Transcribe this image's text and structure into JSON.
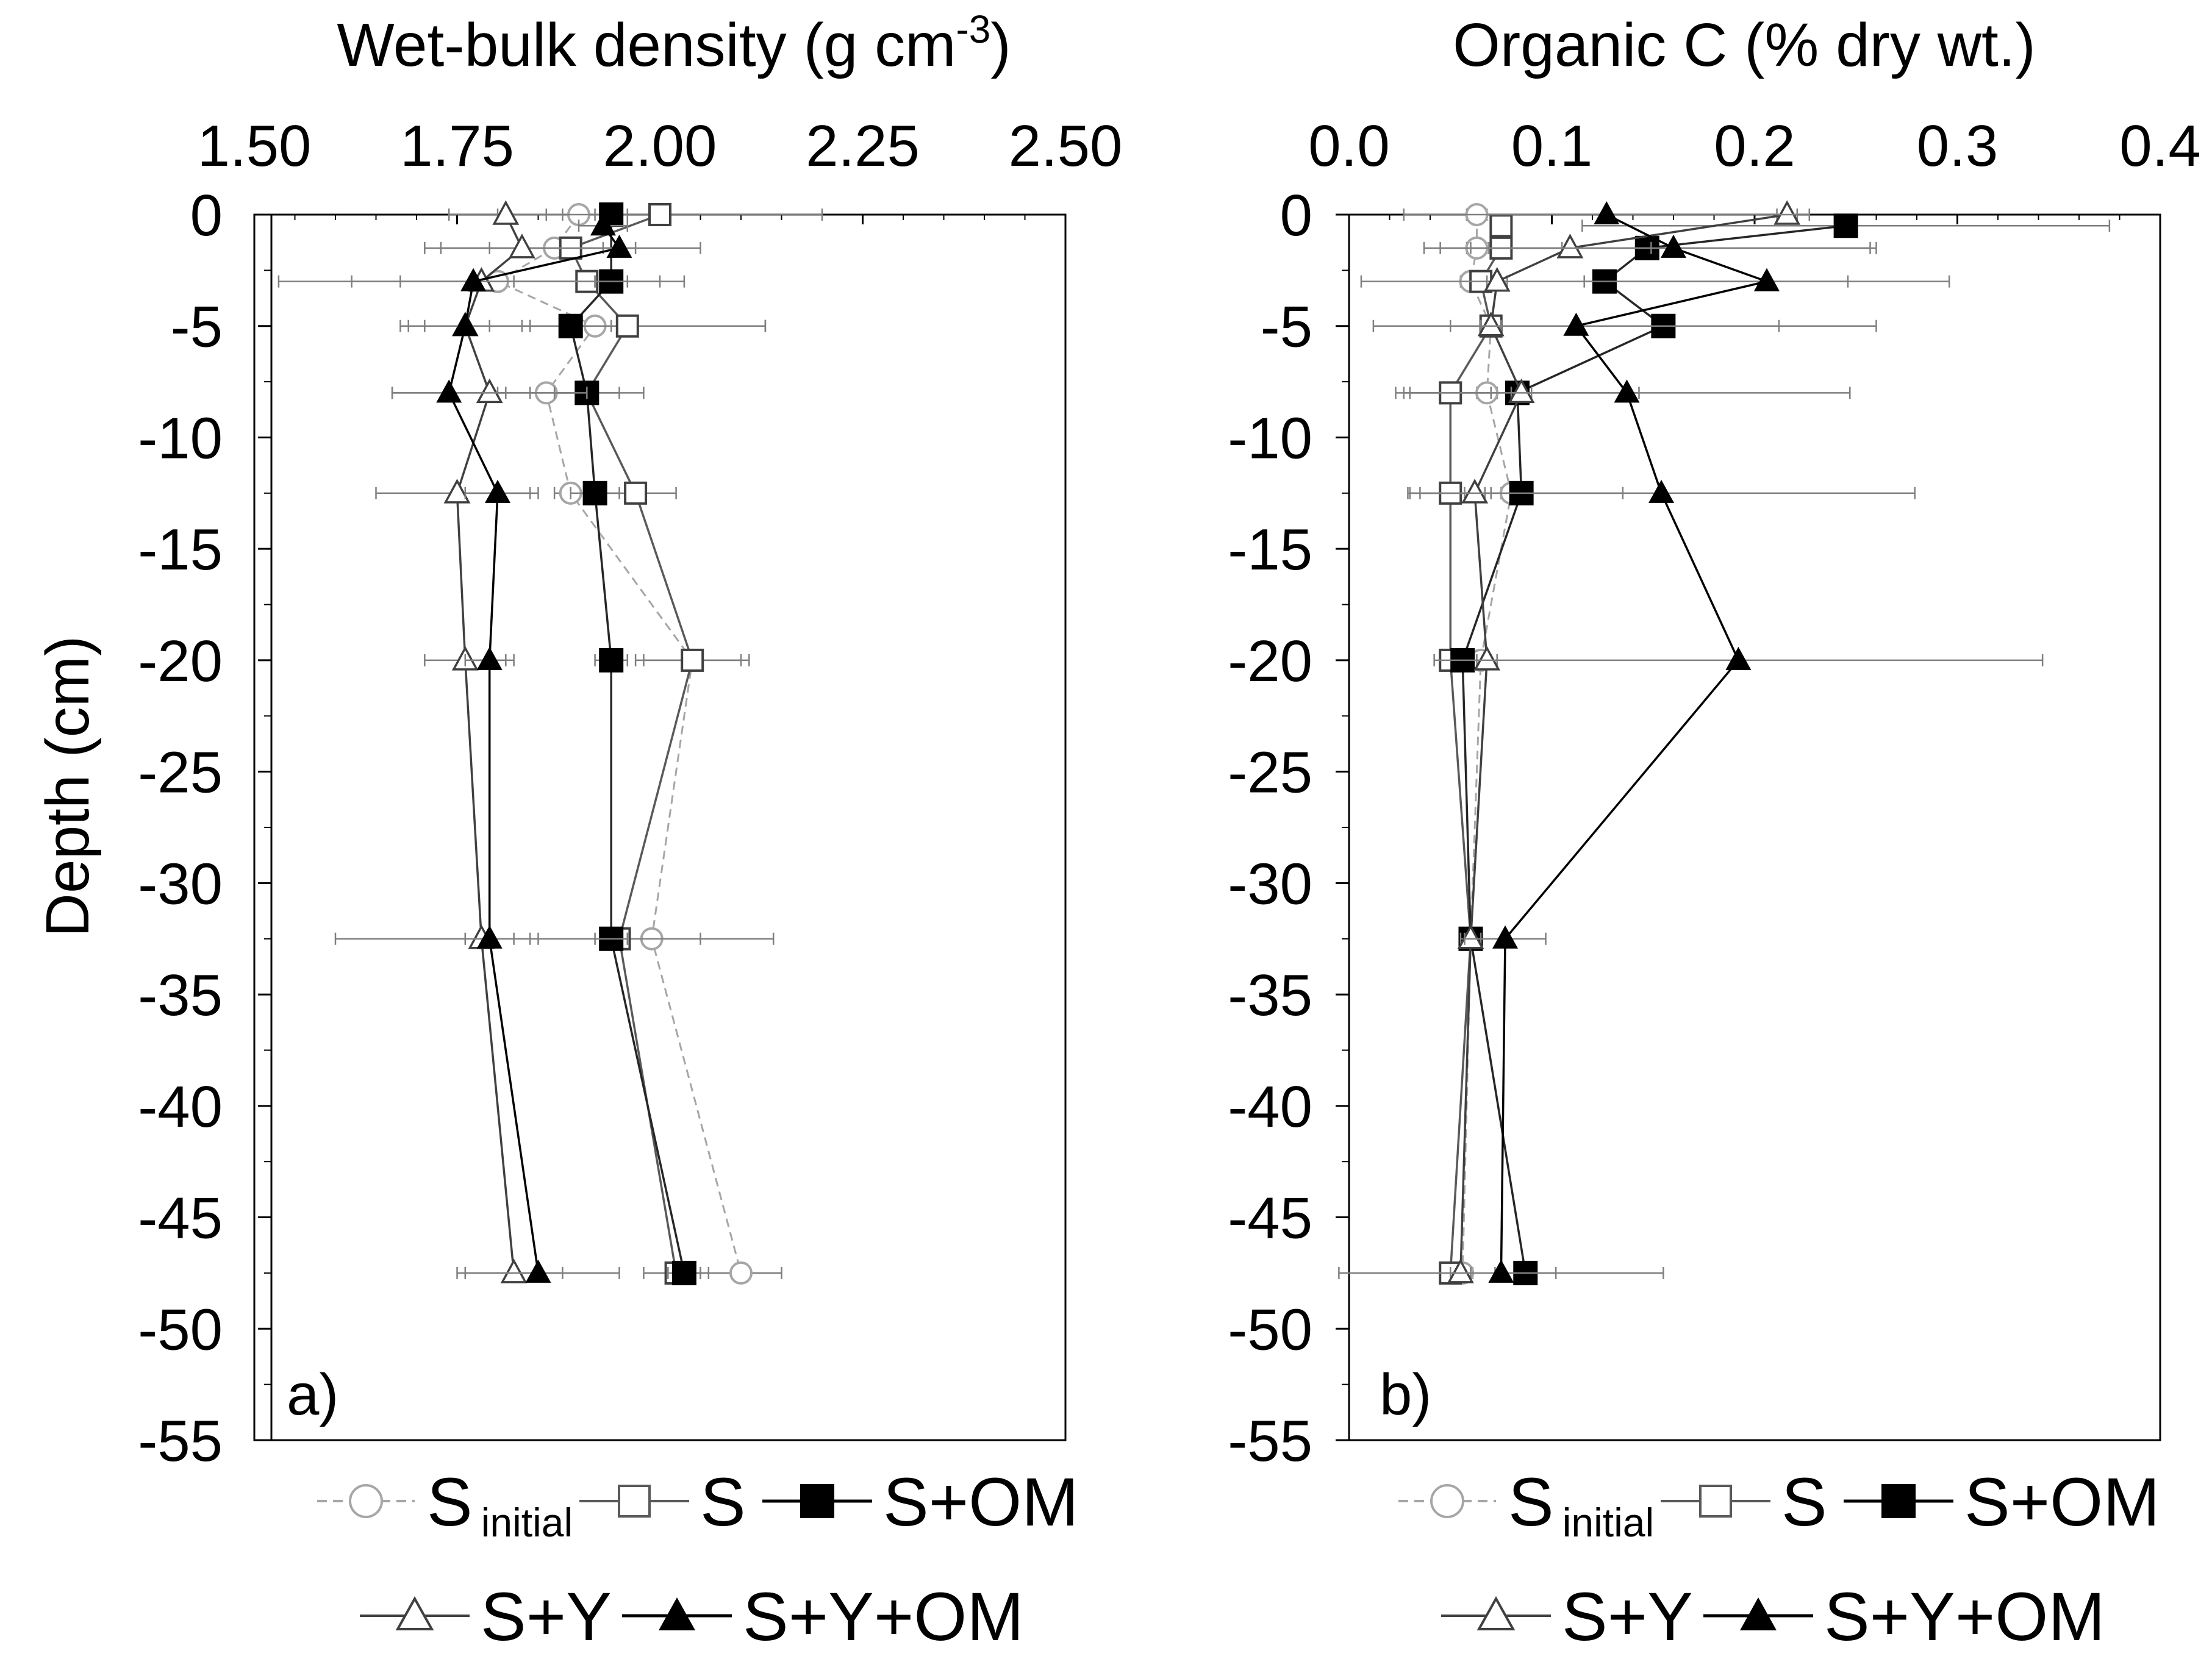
{
  "figure": {
    "y_axis_title": "Depth (cm)",
    "y_tick_labels": [
      "0",
      "-5",
      "-10",
      "-15",
      "-20",
      "-25",
      "-30",
      "-35",
      "-40",
      "-45",
      "-50",
      "-55"
    ]
  },
  "legend_labels": {
    "s_initial_main": "S",
    "s_initial_sub": "initial",
    "s": "S",
    "s_om": "S+OM",
    "s_y": "S+Y",
    "s_y_om": "S+Y+OM"
  },
  "chart_data": [
    {
      "type": "line",
      "panel_label": "a)",
      "title_main": "Wet-bulk density (g cm",
      "title_sup": "-3",
      "title_end": ")",
      "xlabel": "Wet-bulk density (g cm-3)",
      "ylabel": "Depth (cm)",
      "xlim": [
        1.5,
        2.5
      ],
      "ylim": [
        -55,
        0
      ],
      "x_ticks": [
        1.5,
        1.75,
        2.0,
        2.25,
        2.5
      ],
      "x_tick_labels": [
        "1.50",
        "1.75",
        "2.00",
        "2.25",
        "2.50"
      ],
      "y_ticks": [
        0,
        -5,
        -10,
        -15,
        -20,
        -25,
        -30,
        -35,
        -40,
        -45,
        -50,
        -55
      ],
      "series": [
        {
          "name": "S initial",
          "marker": "open-circle",
          "line": "dashed",
          "color": "#a6a6a6",
          "depth": [
            0,
            -1.5,
            -3,
            -5,
            -8,
            -12.5,
            -20,
            -32.5,
            -47.5
          ],
          "values": [
            1.9,
            1.87,
            1.8,
            1.92,
            1.86,
            1.89,
            2.04,
            1.99,
            2.1
          ],
          "error": [
            0.04,
            0.08,
            0.12,
            0.21,
            0.06,
            0.02,
            0.07,
            0.15,
            0.05
          ]
        },
        {
          "name": "S",
          "marker": "open-square",
          "line": "solid",
          "color": "#595959",
          "depth": [
            0,
            -1.5,
            -3,
            -5,
            -8,
            -12.5,
            -20,
            -32.5,
            -47.5
          ],
          "values": [
            2.0,
            1.89,
            1.91,
            1.96,
            1.91,
            1.97,
            2.04,
            1.95,
            2.02
          ],
          "error": [
            0.2,
            0.16,
            0.09,
            0.17,
            0.07,
            0.05,
            0.06,
            0.1,
            0.04
          ]
        },
        {
          "name": "S+OM",
          "marker": "filled-square",
          "line": "solid",
          "color": "#262626",
          "depth": [
            0,
            -3,
            -5,
            -8,
            -12.5,
            -20,
            -32.5,
            -47.5
          ],
          "values": [
            1.94,
            1.94,
            1.89,
            1.91,
            1.92,
            1.94,
            1.94,
            2.03
          ],
          "error": [
            0.02,
            0.02,
            0.05,
            0.04,
            0.03,
            0.02,
            0.02,
            0.02
          ]
        },
        {
          "name": "S+Y",
          "marker": "open-triangle",
          "line": "solid",
          "color": "#404040",
          "depth": [
            0,
            -1.5,
            -3,
            -5,
            -8,
            -12.5,
            -20,
            -32.5,
            -47.5
          ],
          "values": [
            1.81,
            1.83,
            1.78,
            1.76,
            1.79,
            1.75,
            1.76,
            1.78,
            1.82
          ],
          "error": [
            0.07,
            0.12,
            0.25,
            0.08,
            0.12,
            0.1,
            0.05,
            0.18,
            0.06
          ]
        },
        {
          "name": "S+Y+OM",
          "marker": "filled-triangle",
          "line": "solid",
          "color": "#000000",
          "depth": [
            -0.5,
            -1.5,
            -3,
            -5,
            -8,
            -12.5,
            -20,
            -32.5,
            -47.5
          ],
          "values": [
            1.93,
            1.95,
            1.77,
            1.76,
            1.74,
            1.8,
            1.79,
            1.79,
            1.85
          ],
          "error": [
            0.03,
            0.02,
            0.15,
            0.07,
            0.07,
            0.04,
            0.03,
            0.03,
            0.1
          ]
        }
      ]
    },
    {
      "type": "line",
      "panel_label": "b)",
      "title_main": "Organic C (% dry wt.)",
      "title_sup": "",
      "title_end": "",
      "xlabel": "Organic C (% dry wt.)",
      "ylabel": "Depth (cm)",
      "xlim": [
        0,
        0.4
      ],
      "ylim": [
        -55,
        0
      ],
      "x_ticks": [
        0,
        0.1,
        0.2,
        0.3,
        0.4
      ],
      "x_tick_labels": [
        "0.0",
        "0.1",
        "0.2",
        "0.3",
        "0.4"
      ],
      "y_ticks": [
        0,
        -5,
        -10,
        -15,
        -20,
        -25,
        -30,
        -35,
        -40,
        -45,
        -50,
        -55
      ],
      "series": [
        {
          "name": "S initial",
          "marker": "open-circle",
          "line": "dashed",
          "color": "#a6a6a6",
          "depth": [
            0,
            -1.5,
            -3,
            -5,
            -8,
            -12.5,
            -20,
            -32.5,
            -47.5
          ],
          "values": [
            0.063,
            0.063,
            0.06,
            0.07,
            0.068,
            0.08,
            0.065,
            0.06,
            0.056
          ],
          "error": [
            0.005,
            0.005,
            0.005,
            0.005,
            0.005,
            0.005,
            0.005,
            0.005,
            0.005
          ]
        },
        {
          "name": "S",
          "marker": "open-square",
          "line": "solid",
          "color": "#595959",
          "depth": [
            -0.5,
            -1.5,
            -3,
            -5,
            -8,
            -12.5,
            -20,
            -32.5,
            -47.5
          ],
          "values": [
            0.075,
            0.075,
            0.065,
            0.07,
            0.05,
            0.05,
            0.05,
            0.06,
            0.05
          ],
          "error": [
            0.005,
            0.03,
            0.005,
            0.005,
            0.02,
            0.02,
            0.005,
            0.005,
            0.005
          ]
        },
        {
          "name": "S+OM",
          "marker": "filled-square",
          "line": "solid",
          "color": "#262626",
          "depth": [
            -0.5,
            -1.5,
            -3,
            -5,
            -8,
            -12.5,
            -20,
            -32.5,
            -47.5
          ],
          "values": [
            0.245,
            0.147,
            0.126,
            0.155,
            0.083,
            0.085,
            0.056,
            0.06,
            0.087
          ],
          "error": [
            0.13,
            0.11,
            0.12,
            0.105,
            0.06,
            0.05,
            0.005,
            0.005,
            0.015
          ]
        },
        {
          "name": "S+Y",
          "marker": "open-triangle",
          "line": "solid",
          "color": "#404040",
          "depth": [
            0,
            -1.5,
            -3,
            -5,
            -8,
            -12.5,
            -20,
            -32.5,
            -47.5
          ],
          "values": [
            0.216,
            0.109,
            0.073,
            0.07,
            0.085,
            0.062,
            0.068,
            0.06,
            0.055
          ],
          "error": [
            0.005,
            0.04,
            0.005,
            0.005,
            0.005,
            0.005,
            0.005,
            0.005,
            0.005
          ]
        },
        {
          "name": "S+Y+OM",
          "marker": "filled-triangle",
          "line": "solid",
          "color": "#000000",
          "depth": [
            0,
            -1.5,
            -3,
            -5,
            -8,
            -12.5,
            -20,
            -32.5,
            -47.5
          ],
          "values": [
            0.127,
            0.16,
            0.206,
            0.112,
            0.137,
            0.154,
            0.192,
            0.077,
            0.075
          ],
          "error": [
            0.1,
            0.1,
            0.09,
            0.1,
            0.11,
            0.125,
            0.15,
            0.02,
            0.08
          ]
        }
      ]
    }
  ]
}
